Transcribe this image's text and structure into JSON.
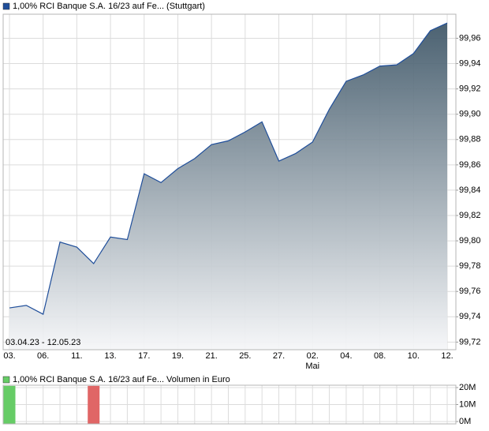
{
  "chart_data": [
    {
      "type": "area",
      "title": "1,00% RCI Banque S.A. 16/23 auf Fe... (Stuttgart)",
      "legend_color": "#1f4e9a",
      "date_range": "03.04.23 - 12.05.23",
      "categories": [
        "03.",
        null,
        "06.",
        null,
        "11.",
        null,
        "13.",
        null,
        "17.",
        null,
        "19.",
        null,
        "21.",
        null,
        "25.",
        null,
        "27.",
        null,
        "02.",
        null,
        "04.",
        null,
        "08.",
        null,
        "10.",
        null,
        "12."
      ],
      "x_sublabels": [
        {
          "text": "Mai",
          "category": "02."
        }
      ],
      "values": [
        99.747,
        99.749,
        99.742,
        99.799,
        99.795,
        99.782,
        99.803,
        99.801,
        99.853,
        99.846,
        99.857,
        99.865,
        99.876,
        99.879,
        99.886,
        99.894,
        99.863,
        99.869,
        99.878,
        99.904,
        99.926,
        99.931,
        99.938,
        99.939,
        99.948,
        99.966,
        99.972
      ],
      "color": "#1f4e9a",
      "fill_top": "#3e5667",
      "fill_bottom": "#f5f6f8",
      "ylim": [
        99.714,
        99.979
      ],
      "yticks": [
        {
          "value": 99.72,
          "label": "99,72"
        },
        {
          "value": 99.74,
          "label": "99,74"
        },
        {
          "value": 99.76,
          "label": "99,76"
        },
        {
          "value": 99.78,
          "label": "99,78"
        },
        {
          "value": 99.8,
          "label": "99,80"
        },
        {
          "value": 99.82,
          "label": "99,82"
        },
        {
          "value": 99.84,
          "label": "99,84"
        },
        {
          "value": 99.86,
          "label": "99,86"
        },
        {
          "value": 99.88,
          "label": "99,88"
        },
        {
          "value": 99.9,
          "label": "99,90"
        },
        {
          "value": 99.92,
          "label": "99,92"
        },
        {
          "value": 99.94,
          "label": "99,94"
        },
        {
          "value": 99.96,
          "label": "99,96"
        }
      ],
      "grid": true
    },
    {
      "type": "bar",
      "title": "1,00% RCI Banque S.A. 16/23 auf Fe... Volumen in Euro",
      "legend_color": "#66cc66",
      "values": [
        21000000,
        null,
        null,
        null,
        null,
        21000000,
        null,
        null,
        null,
        null,
        null,
        null,
        null,
        null,
        null,
        null,
        null,
        null,
        null,
        null,
        null,
        null,
        null,
        null,
        null,
        null,
        null
      ],
      "colors": [
        "#66cc66",
        null,
        null,
        null,
        null,
        "#e06666",
        null,
        null,
        null,
        null,
        null,
        null,
        null,
        null,
        null,
        null,
        null,
        null,
        null,
        null,
        null,
        null,
        null,
        null,
        null,
        null,
        null
      ],
      "ylim": [
        -1400000,
        21400000
      ],
      "yticks": [
        {
          "value": 0,
          "label": "0M"
        },
        {
          "value": 10000000,
          "label": "10M"
        },
        {
          "value": 20000000,
          "label": "20M"
        }
      ],
      "grid": true
    }
  ]
}
